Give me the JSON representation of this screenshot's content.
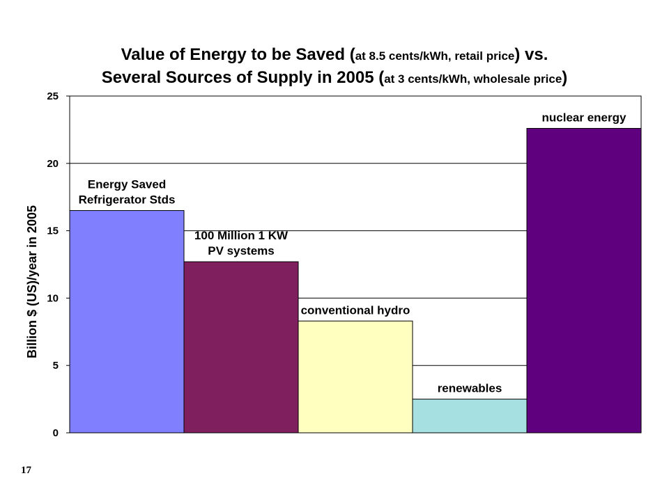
{
  "chart_data": {
    "type": "bar",
    "title_lines": [
      [
        {
          "text": "Value of Energy to be Saved (",
          "small": false
        },
        {
          "text": "at 8.5 cents/kWh, retail price",
          "small": true
        },
        {
          "text": ") vs.",
          "small": false
        }
      ],
      [
        {
          "text": "Several Sources of Supply in 2005 (",
          "small": false
        },
        {
          "text": "at 3 cents/kWh, wholesale price",
          "small": true
        },
        {
          "text": ")",
          "small": false
        }
      ]
    ],
    "ylabel": "Billion $ (US)/year in 2005",
    "ylim": [
      0,
      25
    ],
    "yticks": [
      0,
      5,
      10,
      15,
      20,
      25
    ],
    "grid": true,
    "bars": [
      {
        "label_lines": [
          "Energy Saved",
          "Refrigerator Stds"
        ],
        "value": 16.5,
        "color": "#8080FF"
      },
      {
        "label_lines": [
          "100 Million 1 KW",
          "PV systems"
        ],
        "value": 12.7,
        "color": "#7F1F5E"
      },
      {
        "label_lines": [
          "conventional hydro"
        ],
        "value": 8.3,
        "color": "#FFFFC0"
      },
      {
        "label_lines": [
          "renewables"
        ],
        "value": 2.5,
        "color": "#A6E0E0"
      },
      {
        "label_lines": [
          "nuclear energy"
        ],
        "value": 22.6,
        "color": "#5F007F"
      }
    ]
  },
  "slide_number": "17"
}
